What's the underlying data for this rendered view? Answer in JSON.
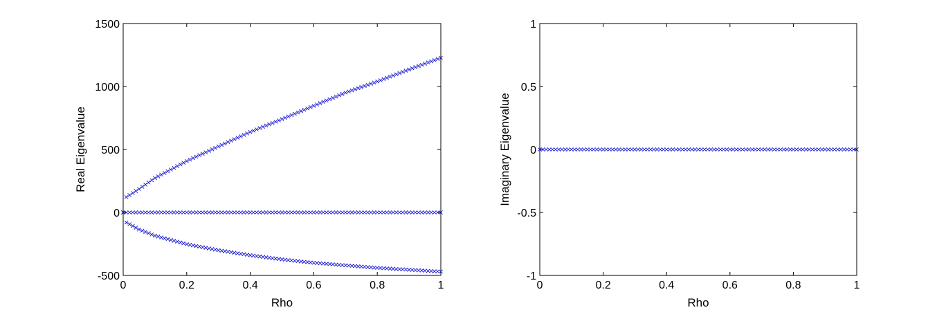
{
  "chart_data": [
    {
      "type": "scatter",
      "title": "",
      "xlabel": "Rho",
      "ylabel": "Real Eigenvalue",
      "xlim": [
        0,
        1
      ],
      "ylim": [
        -500,
        1500
      ],
      "xticks": [
        "0",
        "0.2",
        "0.4",
        "0.6",
        "0.8",
        "1"
      ],
      "yticks": [
        "-500",
        "0",
        "500",
        "1000",
        "1500"
      ],
      "xtick_values": [
        0,
        0.2,
        0.4,
        0.6,
        0.8,
        1
      ],
      "ytick_values": [
        -500,
        0,
        500,
        1000,
        1500
      ],
      "grid": false,
      "marker": "x",
      "color": "#0000cc",
      "x": {
        "start": 0,
        "stop": 1,
        "count": 101
      },
      "series": [
        {
          "points": [
            [
              0,
              0
            ],
            [
              0.01,
              122
            ],
            [
              0.05,
              186
            ],
            [
              0.1,
              273
            ],
            [
              0.2,
              408
            ],
            [
              0.3,
              524
            ],
            [
              0.4,
              639
            ],
            [
              0.5,
              741
            ],
            [
              0.6,
              847
            ],
            [
              0.7,
              951
            ],
            [
              0.8,
              1040
            ],
            [
              0.9,
              1135
            ],
            [
              1.0,
              1228
            ]
          ]
        },
        {
          "points": [
            [
              0,
              0
            ],
            [
              0.5,
              0
            ],
            [
              1.0,
              0
            ]
          ]
        },
        {
          "points": [
            [
              0,
              0
            ],
            [
              0.01,
              -80
            ],
            [
              0.05,
              -135
            ],
            [
              0.1,
              -185
            ],
            [
              0.2,
              -252
            ],
            [
              0.3,
              -300
            ],
            [
              0.4,
              -340
            ],
            [
              0.5,
              -373
            ],
            [
              0.6,
              -400
            ],
            [
              0.7,
              -420
            ],
            [
              0.8,
              -440
            ],
            [
              0.9,
              -455
            ],
            [
              1.0,
              -470
            ]
          ]
        }
      ]
    },
    {
      "type": "scatter",
      "title": "",
      "xlabel": "Rho",
      "ylabel": "Imaginary Eigenvalue",
      "xlim": [
        0,
        1
      ],
      "ylim": [
        -1,
        1
      ],
      "xticks": [
        "0",
        "0.2",
        "0.4",
        "0.6",
        "0.8",
        "1"
      ],
      "yticks": [
        "-1",
        "-0.5",
        "0",
        "0.5",
        "1"
      ],
      "xtick_values": [
        0,
        0.2,
        0.4,
        0.6,
        0.8,
        1
      ],
      "ytick_values": [
        -1,
        -0.5,
        0,
        0.5,
        1
      ],
      "grid": false,
      "marker": "x",
      "color": "#0000cc",
      "x": {
        "start": 0,
        "stop": 1,
        "count": 101
      },
      "series": [
        {
          "points": [
            [
              0,
              0
            ],
            [
              1.0,
              0
            ]
          ]
        }
      ]
    }
  ]
}
